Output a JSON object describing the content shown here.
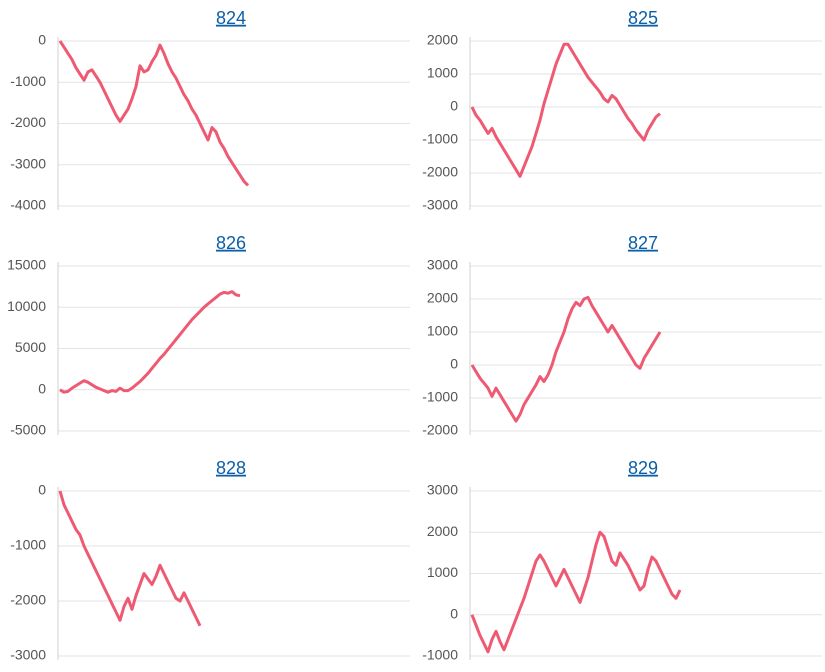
{
  "chart_data": [
    {
      "type": "line",
      "title": "824",
      "color": "#ef5a73",
      "grid": true,
      "ylim": [
        -4000,
        0
      ],
      "yticks": [
        -4000,
        -3000,
        -2000,
        -1000,
        0
      ],
      "values": [
        0,
        -150,
        -300,
        -450,
        -650,
        -800,
        -950,
        -750,
        -700,
        -850,
        -1000,
        -1200,
        -1400,
        -1600,
        -1800,
        -1950,
        -1800,
        -1650,
        -1400,
        -1100,
        -600,
        -750,
        -700,
        -500,
        -350,
        -100,
        -300,
        -550,
        -750,
        -900,
        -1100,
        -1300,
        -1450,
        -1650,
        -1800,
        -2000,
        -2200,
        -2400,
        -2100,
        -2200,
        -2450,
        -2600,
        -2800,
        -2950,
        -3100,
        -3250,
        -3400,
        -3500
      ]
    },
    {
      "type": "line",
      "title": "825",
      "color": "#ef5a73",
      "grid": true,
      "ylim": [
        -3000,
        2000
      ],
      "yticks": [
        -3000,
        -2000,
        -1000,
        0,
        1000,
        2000
      ],
      "values": [
        0,
        -250,
        -400,
        -600,
        -800,
        -650,
        -900,
        -1100,
        -1300,
        -1500,
        -1700,
        -1900,
        -2100,
        -1800,
        -1500,
        -1200,
        -800,
        -400,
        100,
        500,
        900,
        1300,
        1600,
        1900,
        1900,
        1700,
        1500,
        1300,
        1100,
        900,
        750,
        600,
        450,
        250,
        150,
        350,
        250,
        50,
        -150,
        -350,
        -500,
        -700,
        -850,
        -1000,
        -700,
        -500,
        -300,
        -200
      ]
    },
    {
      "type": "line",
      "title": "826",
      "color": "#ef5a73",
      "grid": true,
      "ylim": [
        -5000,
        15000
      ],
      "yticks": [
        -5000,
        0,
        5000,
        10000,
        15000
      ],
      "values": [
        0,
        -300,
        -200,
        200,
        500,
        800,
        1100,
        900,
        600,
        300,
        100,
        -100,
        -300,
        -100,
        -200,
        200,
        -100,
        -100,
        200,
        600,
        1000,
        1500,
        2000,
        2600,
        3200,
        3800,
        4300,
        4900,
        5500,
        6100,
        6700,
        7300,
        7900,
        8500,
        9000,
        9500,
        10000,
        10400,
        10800,
        11200,
        11600,
        11800,
        11700,
        11900,
        11500,
        11400
      ]
    },
    {
      "type": "line",
      "title": "827",
      "color": "#ef5a73",
      "grid": true,
      "ylim": [
        -2000,
        3000
      ],
      "yticks": [
        -2000,
        -1000,
        0,
        1000,
        2000,
        3000
      ],
      "values": [
        0,
        -200,
        -400,
        -550,
        -700,
        -950,
        -700,
        -900,
        -1100,
        -1300,
        -1500,
        -1700,
        -1500,
        -1200,
        -1000,
        -800,
        -600,
        -350,
        -500,
        -300,
        0,
        400,
        700,
        1000,
        1400,
        1700,
        1900,
        1800,
        2000,
        2050,
        1800,
        1600,
        1400,
        1200,
        1000,
        1200,
        1000,
        800,
        600,
        400,
        200,
        0,
        -100,
        200,
        400,
        600,
        800,
        1000
      ]
    },
    {
      "type": "line",
      "title": "828",
      "color": "#ef5a73",
      "grid": true,
      "ylim": [
        -3000,
        0
      ],
      "yticks": [
        -3000,
        -2000,
        -1000,
        0
      ],
      "values": [
        0,
        -250,
        -400,
        -550,
        -700,
        -800,
        -1000,
        -1150,
        -1300,
        -1450,
        -1600,
        -1750,
        -1900,
        -2050,
        -2200,
        -2350,
        -2100,
        -1950,
        -2150,
        -1900,
        -1700,
        -1500,
        -1600,
        -1700,
        -1550,
        -1350,
        -1500,
        -1650,
        -1800,
        -1950,
        -2000,
        -1850,
        -2000,
        -2150,
        -2300,
        -2450
      ]
    },
    {
      "type": "line",
      "title": "829",
      "color": "#ef5a73",
      "grid": true,
      "ylim": [
        -1000,
        3000
      ],
      "yticks": [
        -1000,
        0,
        1000,
        2000,
        3000
      ],
      "values": [
        0,
        -250,
        -500,
        -700,
        -900,
        -600,
        -400,
        -650,
        -850,
        -600,
        -350,
        -100,
        150,
        400,
        700,
        1000,
        1300,
        1450,
        1300,
        1100,
        900,
        700,
        900,
        1100,
        900,
        700,
        500,
        300,
        600,
        900,
        1300,
        1700,
        2000,
        1900,
        1600,
        1300,
        1200,
        1500,
        1350,
        1200,
        1000,
        800,
        600,
        700,
        1100,
        1400,
        1300,
        1100,
        900,
        700,
        500,
        400,
        600
      ]
    }
  ]
}
